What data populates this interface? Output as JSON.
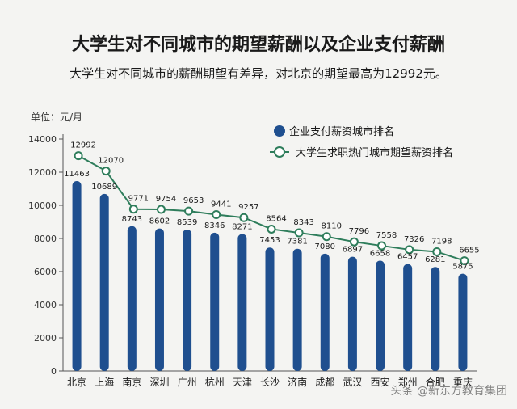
{
  "chart_data": {
    "type": "bar",
    "title": "大学生对不同城市的期望薪酬以及企业支付薪酬",
    "subtitle": "大学生对不同城市的薪酬期望有差异，对北京的期望最高为12992元。",
    "ylabel": "单位：元/月",
    "ylim": [
      0,
      14000
    ],
    "yticks": [
      0,
      2000,
      4000,
      6000,
      8000,
      10000,
      12000,
      14000
    ],
    "categories": [
      "北京",
      "上海",
      "南京",
      "深圳",
      "广州",
      "杭州",
      "天津",
      "长沙",
      "济南",
      "成都",
      "武汉",
      "西安",
      "郑州",
      "合肥",
      "重庆"
    ],
    "series": [
      {
        "name": "企业支付薪资城市排名",
        "type": "bar",
        "color": "#1f4f8f",
        "values": [
          11463,
          10689,
          8743,
          8602,
          8539,
          8346,
          8271,
          7453,
          7381,
          7080,
          6897,
          6658,
          6457,
          6281,
          5875
        ]
      },
      {
        "name": "大学生求职热门城市期望薪资排名",
        "type": "line",
        "color": "#2e7d5b",
        "values": [
          12992,
          12070,
          9771,
          9754,
          9653,
          9441,
          9257,
          8564,
          8343,
          8110,
          7796,
          7558,
          7326,
          7198,
          6655
        ]
      }
    ]
  },
  "watermark": "头条 @新东方教育集团"
}
